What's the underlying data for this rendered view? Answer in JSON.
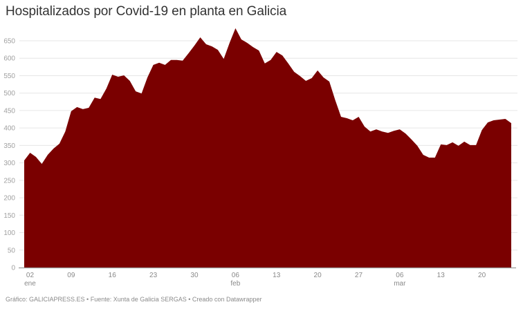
{
  "title": "Hospitalizados por Covid-19 en planta en Galicia",
  "footer": "Gráfico: GALICIAPRESS.ES • Fuente: Xunta de Galicia SERGAS • Creado con Datawrapper",
  "colors": {
    "area": "#7a0000",
    "grid": "#e6e6e6",
    "axis": "#9a9a9a"
  },
  "chart_data": {
    "type": "area",
    "title": "Hospitalizados por Covid-19 en planta en Galicia",
    "xlabel": "",
    "ylabel": "",
    "ylim": [
      0,
      650
    ],
    "grid": true,
    "legend": "none",
    "yticks": [
      0,
      50,
      100,
      150,
      200,
      250,
      300,
      350,
      400,
      450,
      500,
      550,
      600,
      650
    ],
    "xticks": [
      {
        "index": 1,
        "label": "02",
        "sub": "ene"
      },
      {
        "index": 8,
        "label": "09",
        "sub": ""
      },
      {
        "index": 15,
        "label": "16",
        "sub": ""
      },
      {
        "index": 22,
        "label": "23",
        "sub": ""
      },
      {
        "index": 29,
        "label": "30",
        "sub": ""
      },
      {
        "index": 36,
        "label": "06",
        "sub": "feb"
      },
      {
        "index": 43,
        "label": "13",
        "sub": ""
      },
      {
        "index": 50,
        "label": "20",
        "sub": ""
      },
      {
        "index": 57,
        "label": "27",
        "sub": ""
      },
      {
        "index": 64,
        "label": "06",
        "sub": "mar"
      },
      {
        "index": 71,
        "label": "13",
        "sub": ""
      },
      {
        "index": 78,
        "label": "20",
        "sub": ""
      }
    ],
    "x_start": "01 ene",
    "x_end": "25 mar",
    "series": [
      {
        "name": "Hospitalizados en planta",
        "values": [
          307,
          329,
          317,
          297,
          323,
          341,
          355,
          390,
          448,
          460,
          454,
          458,
          487,
          483,
          513,
          553,
          547,
          551,
          535,
          505,
          499,
          545,
          581,
          587,
          581,
          595,
          595,
          593,
          614,
          636,
          660,
          640,
          634,
          624,
          598,
          644,
          686,
          654,
          644,
          632,
          622,
          585,
          595,
          618,
          608,
          585,
          561,
          549,
          535,
          543,
          565,
          545,
          533,
          480,
          432,
          428,
          422,
          432,
          404,
          390,
          396,
          390,
          386,
          392,
          396,
          384,
          367,
          349,
          323,
          315,
          315,
          353,
          351,
          359,
          349,
          361,
          351,
          351,
          394,
          416,
          422,
          424,
          426,
          414
        ]
      }
    ]
  }
}
